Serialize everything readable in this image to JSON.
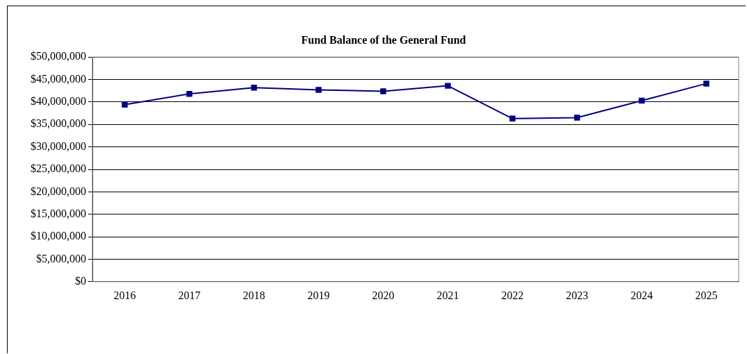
{
  "chart_data": {
    "type": "line",
    "title": "Fund Balance of the General Fund",
    "categories": [
      "2016",
      "2017",
      "2018",
      "2019",
      "2020",
      "2021",
      "2022",
      "2023",
      "2024",
      "2025"
    ],
    "series": [
      {
        "color": "#000080",
        "values": [
          39400000,
          41800000,
          43200000,
          42700000,
          42400000,
          43600000,
          36300000,
          36500000,
          40300000,
          44100000
        ]
      }
    ],
    "ylim": [
      0,
      50000000
    ],
    "yticks": [
      {
        "value": 0,
        "label": "$0"
      },
      {
        "value": 5000000,
        "label": "$5,000,000"
      },
      {
        "value": 10000000,
        "label": "$10,000,000"
      },
      {
        "value": 15000000,
        "label": "$15,000,000"
      },
      {
        "value": 20000000,
        "label": "$20,000,000"
      },
      {
        "value": 25000000,
        "label": "$25,000,000"
      },
      {
        "value": 30000000,
        "label": "$30,000,000"
      },
      {
        "value": 35000000,
        "label": "$35,000,000"
      },
      {
        "value": 40000000,
        "label": "$40,000,000"
      },
      {
        "value": 45000000,
        "label": "$45,000,000"
      },
      {
        "value": 50000000,
        "label": "$50,000,000"
      }
    ],
    "grid": "y",
    "legend": false,
    "marker": "square",
    "line_style": "solid"
  }
}
